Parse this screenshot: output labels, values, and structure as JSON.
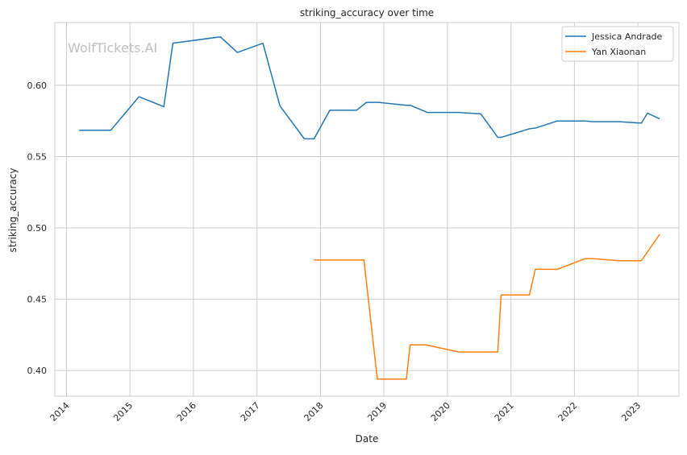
{
  "chart_data": {
    "type": "line",
    "title": "striking_accuracy over time",
    "xlabel": "Date",
    "ylabel": "striking_accuracy",
    "watermark": "WolfTickets.AI",
    "x_ticks": [
      "2014",
      "2015",
      "2016",
      "2017",
      "2018",
      "2019",
      "2020",
      "2021",
      "2022",
      "2023"
    ],
    "y_ticks": [
      "0.40",
      "0.45",
      "0.50",
      "0.55",
      "0.60"
    ],
    "xlim": [
      "2013-10-26",
      "2023-08-25"
    ],
    "ylim": [
      0.382,
      0.644
    ],
    "grid": true,
    "legend_position": "top-right",
    "series": [
      {
        "name": "Jessica Andrade",
        "color": "#1f77b4",
        "points": [
          [
            "2014-03-15",
            0.5685
          ],
          [
            "2014-09-13",
            0.5685
          ],
          [
            "2015-02-22",
            0.592
          ],
          [
            "2015-07-15",
            0.585
          ],
          [
            "2015-09-05",
            0.6295
          ],
          [
            "2016-06-04",
            0.634
          ],
          [
            "2016-09-10",
            0.623
          ],
          [
            "2017-02-04",
            0.6295
          ],
          [
            "2017-05-13",
            0.5855
          ],
          [
            "2017-09-30",
            0.5625
          ],
          [
            "2017-11-25",
            0.5625
          ],
          [
            "2018-02-24",
            0.5825
          ],
          [
            "2018-07-28",
            0.5825
          ],
          [
            "2018-09-22",
            0.588
          ],
          [
            "2018-12-01",
            0.588
          ],
          [
            "2019-05-10",
            0.586
          ],
          [
            "2019-06-01",
            0.586
          ],
          [
            "2019-09-07",
            0.581
          ],
          [
            "2020-03-07",
            0.581
          ],
          [
            "2020-07-11",
            0.58
          ],
          [
            "2020-10-17",
            0.5635
          ],
          [
            "2020-11-05",
            0.5635
          ],
          [
            "2021-04-17",
            0.5695
          ],
          [
            "2021-05-21",
            0.57
          ],
          [
            "2021-09-25",
            0.575
          ],
          [
            "2022-03-05",
            0.575
          ],
          [
            "2022-04-16",
            0.5745
          ],
          [
            "2022-09-17",
            0.5745
          ],
          [
            "2023-01-21",
            0.5735
          ],
          [
            "2023-02-25",
            0.5805
          ],
          [
            "2023-05-06",
            0.5765
          ]
        ]
      },
      {
        "name": "Yan Xiaonan",
        "color": "#ff7f0e",
        "points": [
          [
            "2017-11-25",
            0.4775
          ],
          [
            "2018-09-08",
            0.4775
          ],
          [
            "2018-11-24",
            0.394
          ],
          [
            "2019-05-10",
            0.394
          ],
          [
            "2019-06-01",
            0.418
          ],
          [
            "2019-08-31",
            0.418
          ],
          [
            "2020-03-07",
            0.413
          ],
          [
            "2020-10-17",
            0.413
          ],
          [
            "2020-11-05",
            0.453
          ],
          [
            "2021-04-17",
            0.453
          ],
          [
            "2021-05-21",
            0.471
          ],
          [
            "2021-09-25",
            0.471
          ],
          [
            "2022-03-05",
            0.4785
          ],
          [
            "2022-04-16",
            0.4785
          ],
          [
            "2022-09-17",
            0.477
          ],
          [
            "2023-01-21",
            0.477
          ],
          [
            "2023-05-06",
            0.4955
          ]
        ]
      }
    ]
  }
}
